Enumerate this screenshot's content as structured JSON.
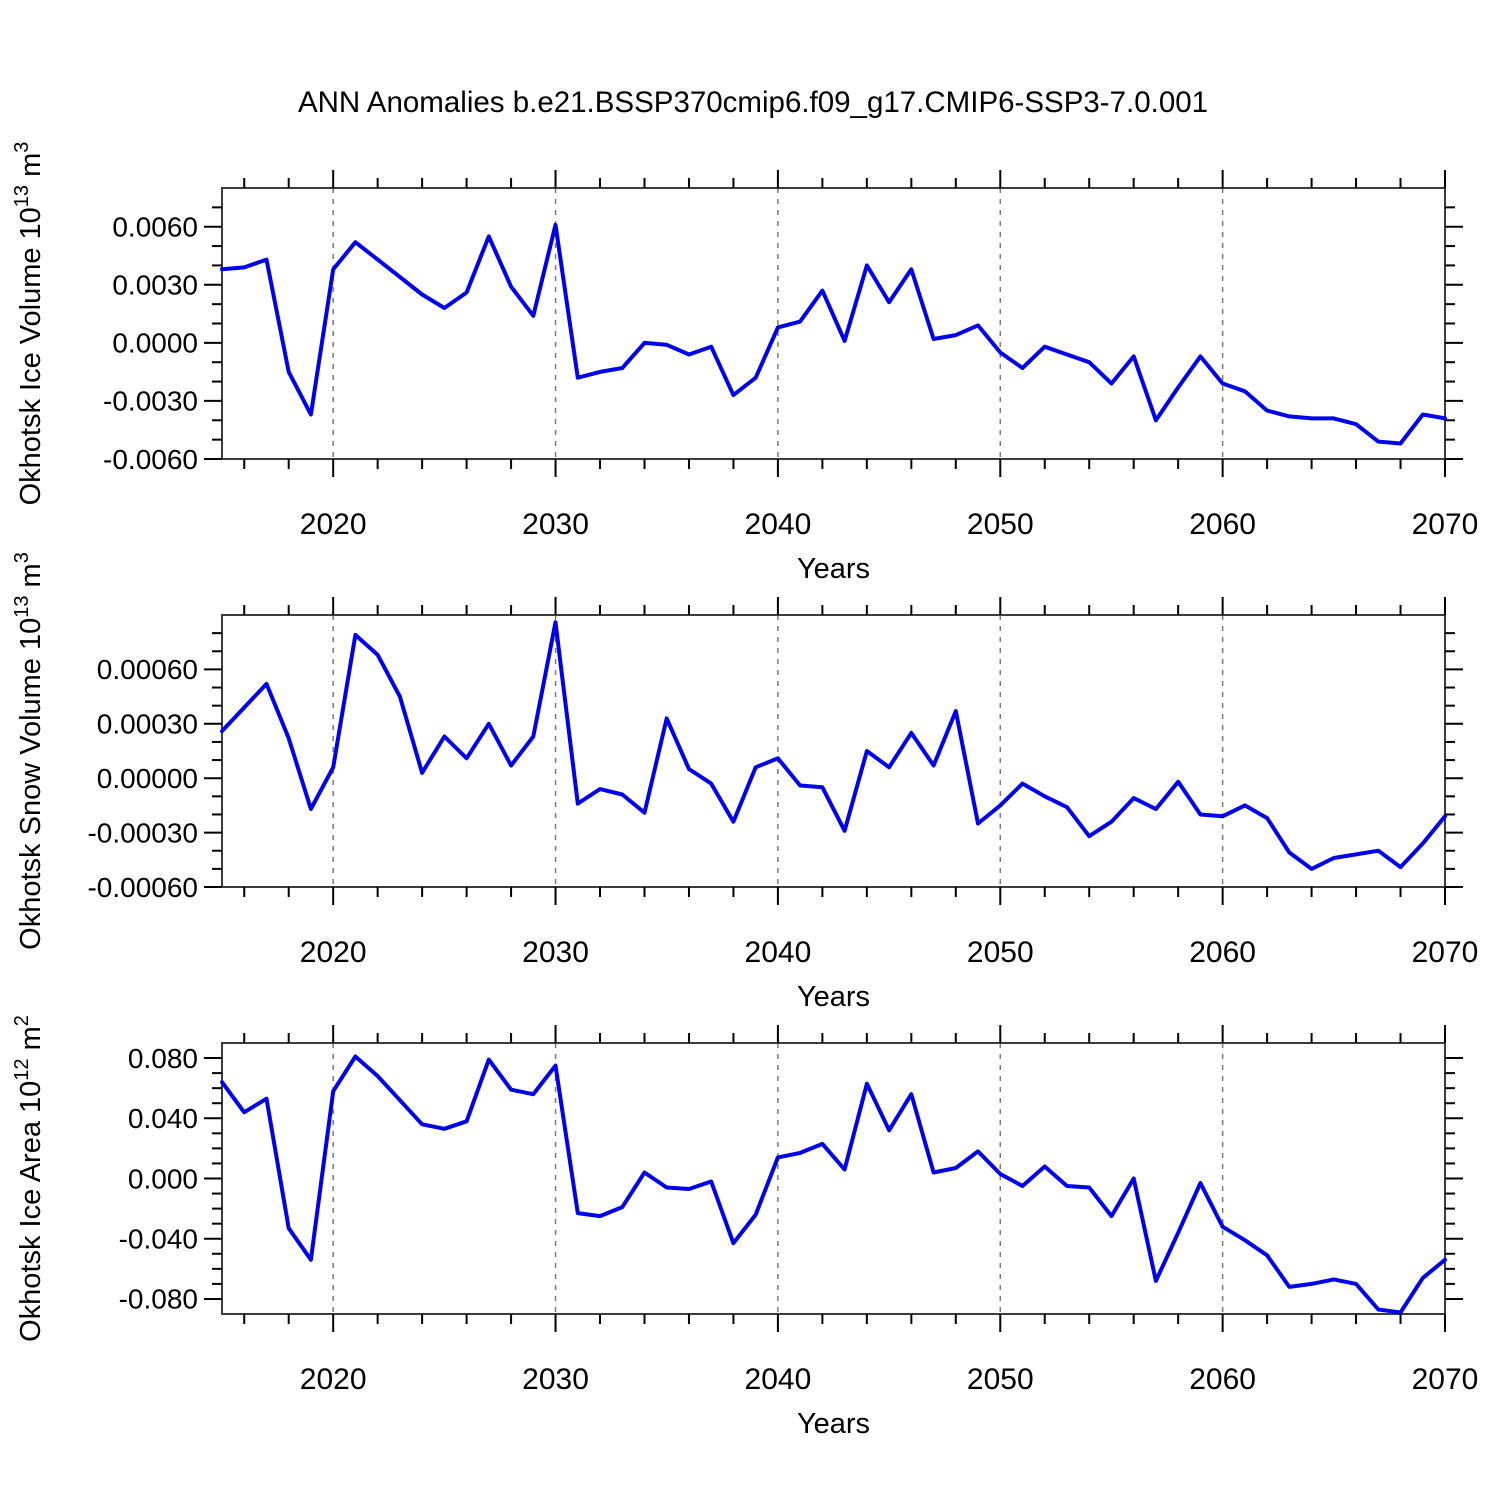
{
  "title": "ANN Anomalies b.e21.BSSP370cmip6.f09_g17.CMIP6-SSP3-7.0.001",
  "colors": {
    "line": "#0000ee",
    "tick": "#000000",
    "frame": "#3c3c3c",
    "grid": "#7a7a7a",
    "background": "#ffffff"
  },
  "years": [
    2015,
    2016,
    2017,
    2018,
    2019,
    2020,
    2021,
    2022,
    2023,
    2024,
    2025,
    2026,
    2027,
    2028,
    2029,
    2030,
    2031,
    2032,
    2033,
    2034,
    2035,
    2036,
    2037,
    2038,
    2039,
    2040,
    2041,
    2042,
    2043,
    2044,
    2045,
    2046,
    2047,
    2048,
    2049,
    2050,
    2051,
    2052,
    2053,
    2054,
    2055,
    2056,
    2057,
    2058,
    2059,
    2060,
    2061,
    2062,
    2063,
    2064,
    2065,
    2066,
    2067,
    2068,
    2069,
    2070
  ],
  "chart_data": [
    {
      "type": "line",
      "name": "ice-volume",
      "ylabel_text": "Okhotsk Ice Volume 10^13 m^3",
      "ylabel_parts": {
        "base": "Okhotsk Ice Volume 10",
        "exp": "13",
        "mid": " m",
        "exp2": "3"
      },
      "xlabel": "Years",
      "ylim": [
        -0.006,
        0.008
      ],
      "ytick_values": [
        0.006,
        0.003,
        0.0,
        -0.003,
        -0.006
      ],
      "ytick_labels": [
        "0.0060",
        "0.0030",
        "0.0000",
        "-0.0030",
        "-0.0060"
      ],
      "y_minor_step": 0.001,
      "x_major": [
        2020,
        2030,
        2040,
        2050,
        2060,
        2070
      ],
      "x_minor_step": 2,
      "grid_years": [
        2020,
        2030,
        2040,
        2050,
        2060
      ],
      "xlim": [
        2015,
        2070
      ],
      "values": [
        0.0038,
        0.0039,
        0.0043,
        -0.0015,
        -0.0037,
        0.0038,
        0.0052,
        0.0043,
        0.0034,
        0.0025,
        0.0018,
        0.0026,
        0.0055,
        0.0029,
        0.0014,
        0.0061,
        -0.0018,
        -0.0015,
        -0.0013,
        0.0,
        -0.0001,
        -0.0006,
        -0.0002,
        -0.0027,
        -0.0018,
        0.0008,
        0.0011,
        0.0027,
        0.0001,
        0.004,
        0.0021,
        0.0038,
        0.0002,
        0.0004,
        0.0009,
        -0.0005,
        -0.0013,
        -0.0002,
        -0.0006,
        -0.001,
        -0.0021,
        -0.0007,
        -0.004,
        -0.0023,
        -0.0007,
        -0.0021,
        -0.0025,
        -0.0035,
        -0.0038,
        -0.0039,
        -0.0039,
        -0.0042,
        -0.0051,
        -0.0052,
        -0.0037,
        -0.0039
      ]
    },
    {
      "type": "line",
      "name": "snow-volume",
      "ylabel_text": "Okhotsk Snow Volume 10^13 m^3",
      "ylabel_parts": {
        "base": "Okhotsk Snow Volume 10",
        "exp": "13",
        "mid": " m",
        "exp2": "3"
      },
      "xlabel": "Years",
      "ylim": [
        -0.0006,
        0.0009
      ],
      "ytick_values": [
        0.0006,
        0.0003,
        0.0,
        -0.0003,
        -0.0006
      ],
      "ytick_labels": [
        "0.00060",
        "0.00030",
        "0.00000",
        "-0.00030",
        "-0.00060"
      ],
      "y_minor_step": 0.0001,
      "x_major": [
        2020,
        2030,
        2040,
        2050,
        2060,
        2070
      ],
      "x_minor_step": 2,
      "grid_years": [
        2020,
        2030,
        2040,
        2050,
        2060
      ],
      "xlim": [
        2015,
        2070
      ],
      "values": [
        0.00026,
        0.00039,
        0.00052,
        0.00022,
        -0.00017,
        6e-05,
        0.00079,
        0.00068,
        0.00045,
        3e-05,
        0.00023,
        0.00011,
        0.0003,
        7e-05,
        0.00023,
        0.00086,
        -0.00014,
        -6e-05,
        -9e-05,
        -0.00019,
        0.00033,
        5e-05,
        -3e-05,
        -0.00024,
        6e-05,
        0.00011,
        -4e-05,
        -5e-05,
        -0.00029,
        0.00015,
        6e-05,
        0.00025,
        7e-05,
        0.00037,
        -0.00025,
        -0.00015,
        -3e-05,
        -0.0001,
        -0.00016,
        -0.00032,
        -0.00024,
        -0.00011,
        -0.00017,
        -2e-05,
        -0.0002,
        -0.00021,
        -0.00015,
        -0.00022,
        -0.00041,
        -0.0005,
        -0.00044,
        -0.00042,
        -0.0004,
        -0.00049,
        -0.00036,
        -0.00021
      ]
    },
    {
      "type": "line",
      "name": "ice-area",
      "ylabel_text": "Okhotsk Ice Area 10^12 m^2",
      "ylabel_parts": {
        "base": "Okhotsk Ice Area 10",
        "exp": "12",
        "mid": " m",
        "exp2": "2"
      },
      "xlabel": "Years",
      "ylim": [
        -0.09,
        0.09
      ],
      "ytick_values": [
        0.08,
        0.04,
        0.0,
        -0.04,
        -0.08
      ],
      "ytick_labels": [
        "0.080",
        "0.040",
        "0.000",
        "-0.040",
        "-0.080"
      ],
      "y_minor_step": 0.01,
      "x_major": [
        2020,
        2030,
        2040,
        2050,
        2060,
        2070
      ],
      "x_minor_step": 2,
      "grid_years": [
        2020,
        2030,
        2040,
        2050,
        2060
      ],
      "xlim": [
        2015,
        2070
      ],
      "values": [
        0.064,
        0.044,
        0.053,
        -0.033,
        -0.054,
        0.058,
        0.081,
        0.068,
        0.052,
        0.036,
        0.033,
        0.038,
        0.079,
        0.059,
        0.056,
        0.075,
        -0.023,
        -0.025,
        -0.019,
        0.004,
        -0.006,
        -0.007,
        -0.002,
        -0.043,
        -0.024,
        0.014,
        0.017,
        0.023,
        0.006,
        0.063,
        0.032,
        0.056,
        0.004,
        0.007,
        0.018,
        0.003,
        -0.005,
        0.008,
        -0.005,
        -0.006,
        -0.025,
        0.0,
        -0.068,
        -0.036,
        -0.003,
        -0.032,
        -0.041,
        -0.051,
        -0.072,
        -0.07,
        -0.067,
        -0.07,
        -0.087,
        -0.089,
        -0.066,
        -0.054
      ]
    }
  ]
}
